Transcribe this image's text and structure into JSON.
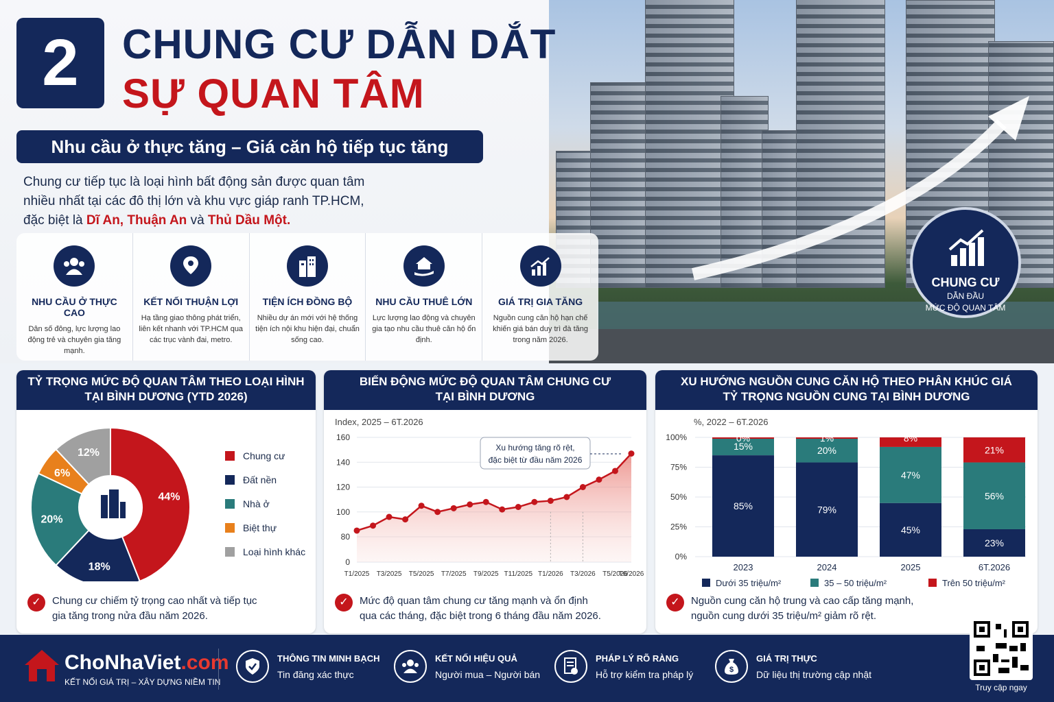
{
  "header": {
    "number": "2",
    "title_line1": "CHUNG CƯ DẪN DẮT",
    "title_line2": "SỰ QUAN TÂM",
    "subtitle": "Nhu cầu ở thực tăng – Giá căn hộ tiếp tục tăng"
  },
  "intro": {
    "text": "Chung cư tiếp tục là loại hình bất động sản được quan tâm nhiều nhất tại các đô thị lớn và khu vực giáp ranh TP.HCM, đặc biệt là",
    "loc1": "Dĩ An,",
    "loc2": "Thuận An",
    "and": "và",
    "loc3": "Thủ Dầu Một."
  },
  "features": [
    {
      "icon": "people-icon",
      "title": "NHU CẦU Ở THỰC CAO",
      "desc": "Dân số đông, lực lượng lao động trẻ và chuyên gia tăng mạnh."
    },
    {
      "icon": "location-icon",
      "title": "KẾT NỐI THUẬN LỢI",
      "desc": "Hạ tầng giao thông phát triển, liên kết nhanh với TP.HCM qua các trục vành đai, metro."
    },
    {
      "icon": "building-icon",
      "title": "TIỆN ÍCH ĐỒNG BỘ",
      "desc": "Nhiều dự án mới với hệ thống tiện ích nội khu hiện đại, chuẩn sống cao."
    },
    {
      "icon": "home-hand-icon",
      "title": "NHU CẦU THUÊ LỚN",
      "desc": "Lực lượng lao động và chuyên gia tạo nhu cầu thuê căn hộ ổn định."
    },
    {
      "icon": "growth-icon",
      "title": "GIÁ TRỊ GIA TĂNG",
      "desc": "Nguồn cung căn hộ hạn chế khiến giá bán duy trì đà tăng trong năm 2026."
    }
  ],
  "badge": {
    "title": "CHUNG CƯ",
    "line1": "DẪN ĐẦU",
    "line2": "MỨC ĐỘ QUAN TÂM"
  },
  "panels": {
    "pie": {
      "head1": "TỶ TRỌNG MỨC ĐỘ QUAN TÂM THEO LOẠI HÌNH",
      "head2": "TẠI BÌNH DƯƠNG (YTD 2026)",
      "note1": "Chung cư chiếm tỷ trọng cao nhất và tiếp tục",
      "note2": "gia tăng trong nửa đầu năm 2026."
    },
    "line": {
      "head1": "BIẾN ĐỘNG MỨC ĐỘ QUAN TÂM CHUNG CƯ",
      "head2": "TẠI BÌNH DƯƠNG",
      "note1": "Mức độ quan tâm chung cư tăng mạnh và ổn định",
      "note2": "qua các tháng, đặc biệt trong 6 tháng đầu năm 2026."
    },
    "bar": {
      "head1": "XU HƯỚNG NGUỒN CUNG CĂN HỘ THEO PHÂN KHÚC GIÁ",
      "head2": "TỶ TRỌNG NGUỒN CUNG TẠI BÌNH DƯƠNG",
      "note1": "Nguồn cung căn hộ trung và cao cấp tăng mạnh,",
      "note2": "nguồn cung dưới 35 triệu/m² giảm rõ rệt."
    }
  },
  "chart_data": [
    {
      "type": "pie",
      "categories": [
        "Chung cư",
        "Đất nền",
        "Nhà ở",
        "Biệt thự",
        "Loại hình khác"
      ],
      "values": [
        44,
        18,
        20,
        6,
        12
      ],
      "labels": [
        "44%",
        "18%",
        "20%",
        "6%",
        "12%"
      ],
      "colors": [
        "#c4161c",
        "#14285a",
        "#2a7b7b",
        "#e8801c",
        "#a0a0a0"
      ],
      "legend": "right"
    },
    {
      "type": "line",
      "ylabel": "Index, 2025 – 6T.2026",
      "ylim": [
        0,
        160
      ],
      "yticks": [
        0,
        80,
        100,
        120,
        140,
        160
      ],
      "xticks": [
        "T1/2025",
        "T3/2025",
        "T5/2025",
        "T7/2025",
        "T9/2025",
        "T11/2025",
        "T1/2026",
        "T3/2026",
        "T5/2026",
        "T6/2026"
      ],
      "x": [
        "T1/2025",
        "T2/2025",
        "T3/2025",
        "T4/2025",
        "T5/2025",
        "T6/2025",
        "T7/2025",
        "T8/2025",
        "T9/2025",
        "T10/2025",
        "T11/2025",
        "T12/2025",
        "T1/2026",
        "T2/2026",
        "T3/2026",
        "T4/2026",
        "T5/2026",
        "T6/2026"
      ],
      "values": [
        85,
        89,
        96,
        94,
        105,
        100,
        103,
        106,
        108,
        102,
        104,
        108,
        109,
        112,
        120,
        126,
        133,
        147
      ],
      "annotation": "Xu hướng tăng rõ rệt, đặc biệt từ đầu năm 2026",
      "color": "#c4161c"
    },
    {
      "type": "bar",
      "stacked": true,
      "ylabel": "%, 2022 – 6T.2026",
      "yticks": [
        "0%",
        "25%",
        "50%",
        "75%",
        "100%"
      ],
      "categories": [
        "2023",
        "2024",
        "2025",
        "6T.2026"
      ],
      "series": [
        {
          "name": "Dưới 35 triệu/m²",
          "values": [
            85,
            79,
            45,
            23
          ],
          "color": "#14285a"
        },
        {
          "name": "35 – 50 triệu/m²",
          "values": [
            15,
            20,
            47,
            56
          ],
          "color": "#2a7b7b"
        },
        {
          "name": "Trên 50 triệu/m²",
          "values": [
            0,
            1,
            8,
            21
          ],
          "color": "#c4161c"
        }
      ]
    }
  ],
  "footer": {
    "brand": "ChoNhaViet",
    "brand_suffix": ".com",
    "tagline": "KẾT NỐI GIÁ TRỊ – XÂY DỰNG NIỀM TIN",
    "items": [
      {
        "title": "THÔNG TIN MINH BẠCH",
        "desc": "Tin đăng xác thực"
      },
      {
        "title": "KẾT NỐI HIỆU QUẢ",
        "desc": "Người mua – Người bán"
      },
      {
        "title": "PHÁP LÝ RÕ RÀNG",
        "desc": "Hỗ trợ kiểm tra pháp lý"
      },
      {
        "title": "GIÁ TRỊ THỰC",
        "desc": "Dữ liệu thị trường cập nhật"
      }
    ],
    "qr_label": "Truy cập ngay"
  }
}
